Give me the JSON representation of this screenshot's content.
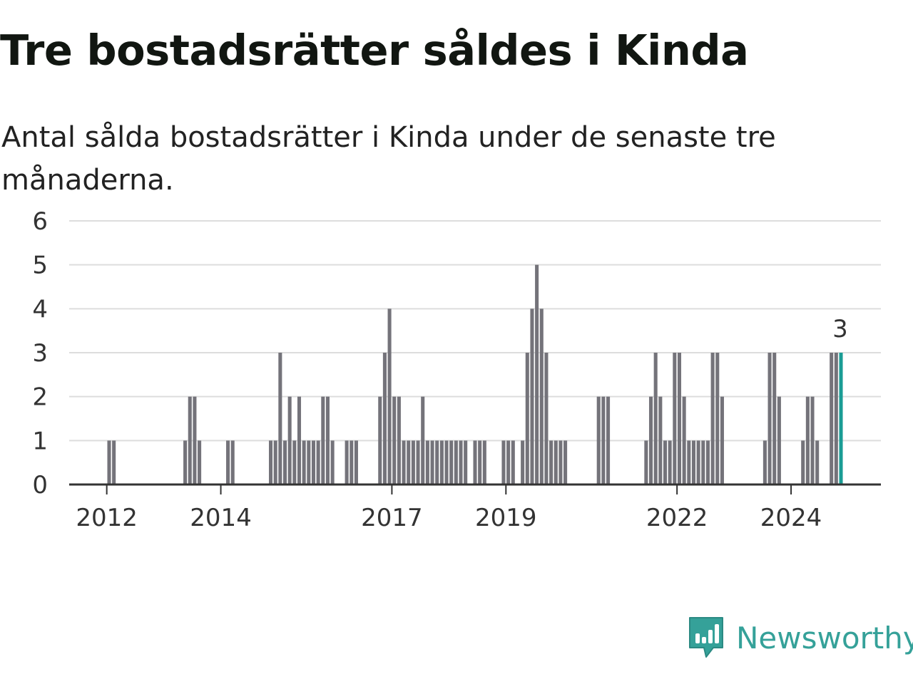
{
  "title": "Tre bostadsrätter såldes i Kinda",
  "subtitle": "Antal sålda bostadsrätter i Kinda under de senaste tre månaderna.",
  "brand": "Newsworthy",
  "colors": {
    "bar": "#74737a",
    "highlight": "#1a9c95",
    "grid": "#dddddd",
    "axis": "#333333",
    "brand": "#35a199"
  },
  "chart_data": {
    "type": "bar",
    "x_unit": "month",
    "x_start": "2011-12",
    "x_end": "2024-11",
    "ylim": [
      0,
      6
    ],
    "yticks": [
      0,
      1,
      2,
      3,
      4,
      5,
      6
    ],
    "xticks": [
      "2012",
      "2014",
      "2017",
      "2019",
      "2022",
      "2024"
    ],
    "grid": true,
    "highlight_last": true,
    "last_value_label": "3",
    "values": [
      {
        "x": "2012-01",
        "y": 1
      },
      {
        "x": "2012-02",
        "y": 1
      },
      {
        "x": "2013-05",
        "y": 1
      },
      {
        "x": "2013-06",
        "y": 2
      },
      {
        "x": "2013-07",
        "y": 2
      },
      {
        "x": "2013-08",
        "y": 1
      },
      {
        "x": "2014-02",
        "y": 1
      },
      {
        "x": "2014-03",
        "y": 1
      },
      {
        "x": "2014-11",
        "y": 1
      },
      {
        "x": "2014-12",
        "y": 1
      },
      {
        "x": "2015-01",
        "y": 3
      },
      {
        "x": "2015-02",
        "y": 1
      },
      {
        "x": "2015-03",
        "y": 2
      },
      {
        "x": "2015-04",
        "y": 1
      },
      {
        "x": "2015-05",
        "y": 2
      },
      {
        "x": "2015-06",
        "y": 1
      },
      {
        "x": "2015-07",
        "y": 1
      },
      {
        "x": "2015-08",
        "y": 1
      },
      {
        "x": "2015-09",
        "y": 1
      },
      {
        "x": "2015-10",
        "y": 2
      },
      {
        "x": "2015-11",
        "y": 2
      },
      {
        "x": "2015-12",
        "y": 1
      },
      {
        "x": "2016-03",
        "y": 1
      },
      {
        "x": "2016-04",
        "y": 1
      },
      {
        "x": "2016-05",
        "y": 1
      },
      {
        "x": "2016-10",
        "y": 2
      },
      {
        "x": "2016-11",
        "y": 3
      },
      {
        "x": "2016-12",
        "y": 4
      },
      {
        "x": "2017-01",
        "y": 2
      },
      {
        "x": "2017-02",
        "y": 2
      },
      {
        "x": "2017-03",
        "y": 1
      },
      {
        "x": "2017-04",
        "y": 1
      },
      {
        "x": "2017-05",
        "y": 1
      },
      {
        "x": "2017-06",
        "y": 1
      },
      {
        "x": "2017-07",
        "y": 2
      },
      {
        "x": "2017-08",
        "y": 1
      },
      {
        "x": "2017-09",
        "y": 1
      },
      {
        "x": "2017-10",
        "y": 1
      },
      {
        "x": "2017-11",
        "y": 1
      },
      {
        "x": "2017-12",
        "y": 1
      },
      {
        "x": "2018-01",
        "y": 1
      },
      {
        "x": "2018-02",
        "y": 1
      },
      {
        "x": "2018-03",
        "y": 1
      },
      {
        "x": "2018-04",
        "y": 1
      },
      {
        "x": "2018-06",
        "y": 1
      },
      {
        "x": "2018-07",
        "y": 1
      },
      {
        "x": "2018-08",
        "y": 1
      },
      {
        "x": "2018-12",
        "y": 1
      },
      {
        "x": "2019-01",
        "y": 1
      },
      {
        "x": "2019-02",
        "y": 1
      },
      {
        "x": "2019-04",
        "y": 1
      },
      {
        "x": "2019-05",
        "y": 3
      },
      {
        "x": "2019-06",
        "y": 4
      },
      {
        "x": "2019-07",
        "y": 5
      },
      {
        "x": "2019-08",
        "y": 4
      },
      {
        "x": "2019-09",
        "y": 3
      },
      {
        "x": "2019-10",
        "y": 1
      },
      {
        "x": "2019-11",
        "y": 1
      },
      {
        "x": "2019-12",
        "y": 1
      },
      {
        "x": "2020-01",
        "y": 1
      },
      {
        "x": "2020-08",
        "y": 2
      },
      {
        "x": "2020-09",
        "y": 2
      },
      {
        "x": "2020-10",
        "y": 2
      },
      {
        "x": "2021-06",
        "y": 1
      },
      {
        "x": "2021-07",
        "y": 2
      },
      {
        "x": "2021-08",
        "y": 3
      },
      {
        "x": "2021-09",
        "y": 2
      },
      {
        "x": "2021-10",
        "y": 1
      },
      {
        "x": "2021-11",
        "y": 1
      },
      {
        "x": "2021-12",
        "y": 3
      },
      {
        "x": "2022-01",
        "y": 3
      },
      {
        "x": "2022-02",
        "y": 2
      },
      {
        "x": "2022-03",
        "y": 1
      },
      {
        "x": "2022-04",
        "y": 1
      },
      {
        "x": "2022-05",
        "y": 1
      },
      {
        "x": "2022-06",
        "y": 1
      },
      {
        "x": "2022-07",
        "y": 1
      },
      {
        "x": "2022-08",
        "y": 3
      },
      {
        "x": "2022-09",
        "y": 3
      },
      {
        "x": "2022-10",
        "y": 2
      },
      {
        "x": "2023-07",
        "y": 1
      },
      {
        "x": "2023-08",
        "y": 3
      },
      {
        "x": "2023-09",
        "y": 3
      },
      {
        "x": "2023-10",
        "y": 2
      },
      {
        "x": "2024-03",
        "y": 1
      },
      {
        "x": "2024-04",
        "y": 2
      },
      {
        "x": "2024-05",
        "y": 2
      },
      {
        "x": "2024-06",
        "y": 1
      },
      {
        "x": "2024-09",
        "y": 3
      },
      {
        "x": "2024-10",
        "y": 3
      },
      {
        "x": "2024-11",
        "y": 3
      }
    ]
  }
}
